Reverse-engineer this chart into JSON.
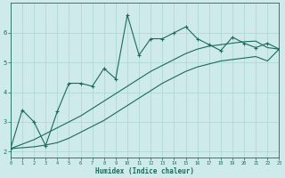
{
  "xlabel": "Humidex (Indice chaleur)",
  "bg_color": "#ceeaea",
  "line_color": "#1a6b5a",
  "grid_color": "#aad4d4",
  "xlim": [
    0,
    23
  ],
  "ylim": [
    1.8,
    7.0
  ],
  "xticks": [
    0,
    1,
    2,
    3,
    4,
    5,
    6,
    7,
    8,
    9,
    10,
    11,
    12,
    13,
    14,
    15,
    16,
    17,
    18,
    19,
    20,
    21,
    22,
    23
  ],
  "yticks": [
    2,
    3,
    4,
    5,
    6
  ],
  "line1_x": [
    0,
    1,
    2,
    3,
    4,
    5,
    6,
    7,
    8,
    9,
    10,
    11,
    12,
    13,
    14,
    15,
    16,
    17,
    18,
    19,
    20,
    21,
    22,
    23
  ],
  "line1_y": [
    2.1,
    3.4,
    3.0,
    2.2,
    3.35,
    4.3,
    4.3,
    4.2,
    4.8,
    4.45,
    6.6,
    5.25,
    5.8,
    5.8,
    6.0,
    6.2,
    5.8,
    5.6,
    5.4,
    5.85,
    5.65,
    5.5,
    5.65,
    5.45
  ],
  "line2_x": [
    0,
    1,
    2,
    3,
    4,
    5,
    6,
    7,
    8,
    9,
    10,
    11,
    12,
    13,
    14,
    15,
    16,
    17,
    18,
    19,
    20,
    21,
    22,
    23
  ],
  "line2_y": [
    2.1,
    2.25,
    2.4,
    2.6,
    2.8,
    3.0,
    3.2,
    3.45,
    3.7,
    3.95,
    4.2,
    4.45,
    4.7,
    4.9,
    5.1,
    5.3,
    5.45,
    5.55,
    5.6,
    5.65,
    5.7,
    5.72,
    5.5,
    5.45
  ],
  "line3_x": [
    0,
    1,
    2,
    3,
    4,
    5,
    6,
    7,
    8,
    9,
    10,
    11,
    12,
    13,
    14,
    15,
    16,
    17,
    18,
    19,
    20,
    21,
    22,
    23
  ],
  "line3_y": [
    2.1,
    2.13,
    2.16,
    2.22,
    2.3,
    2.45,
    2.65,
    2.85,
    3.05,
    3.3,
    3.55,
    3.8,
    4.05,
    4.3,
    4.5,
    4.7,
    4.85,
    4.95,
    5.05,
    5.1,
    5.15,
    5.2,
    5.05,
    5.45
  ]
}
